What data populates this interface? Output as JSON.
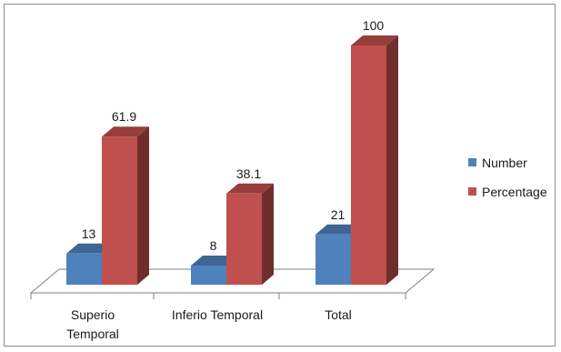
{
  "chart_data": {
    "type": "bar",
    "style": "3d-clustered-column",
    "categories": [
      "Superio Temporal",
      "Inferio Temporal",
      "Total"
    ],
    "category_lines": [
      [
        "Superio",
        "Temporal"
      ],
      [
        "Inferio Temporal"
      ],
      [
        "Total"
      ]
    ],
    "series": [
      {
        "name": "Number",
        "values": [
          13,
          8,
          21
        ],
        "color": "#4f81bd"
      },
      {
        "name": "Percentage",
        "values": [
          61.9,
          38.1,
          100
        ],
        "color": "#c0504d"
      }
    ],
    "data_labels": [
      [
        "13",
        "61.9"
      ],
      [
        "8",
        "38.1"
      ],
      [
        "21",
        "100"
      ]
    ],
    "ylim": [
      0,
      100
    ],
    "grid": false,
    "legend_position": "right"
  }
}
